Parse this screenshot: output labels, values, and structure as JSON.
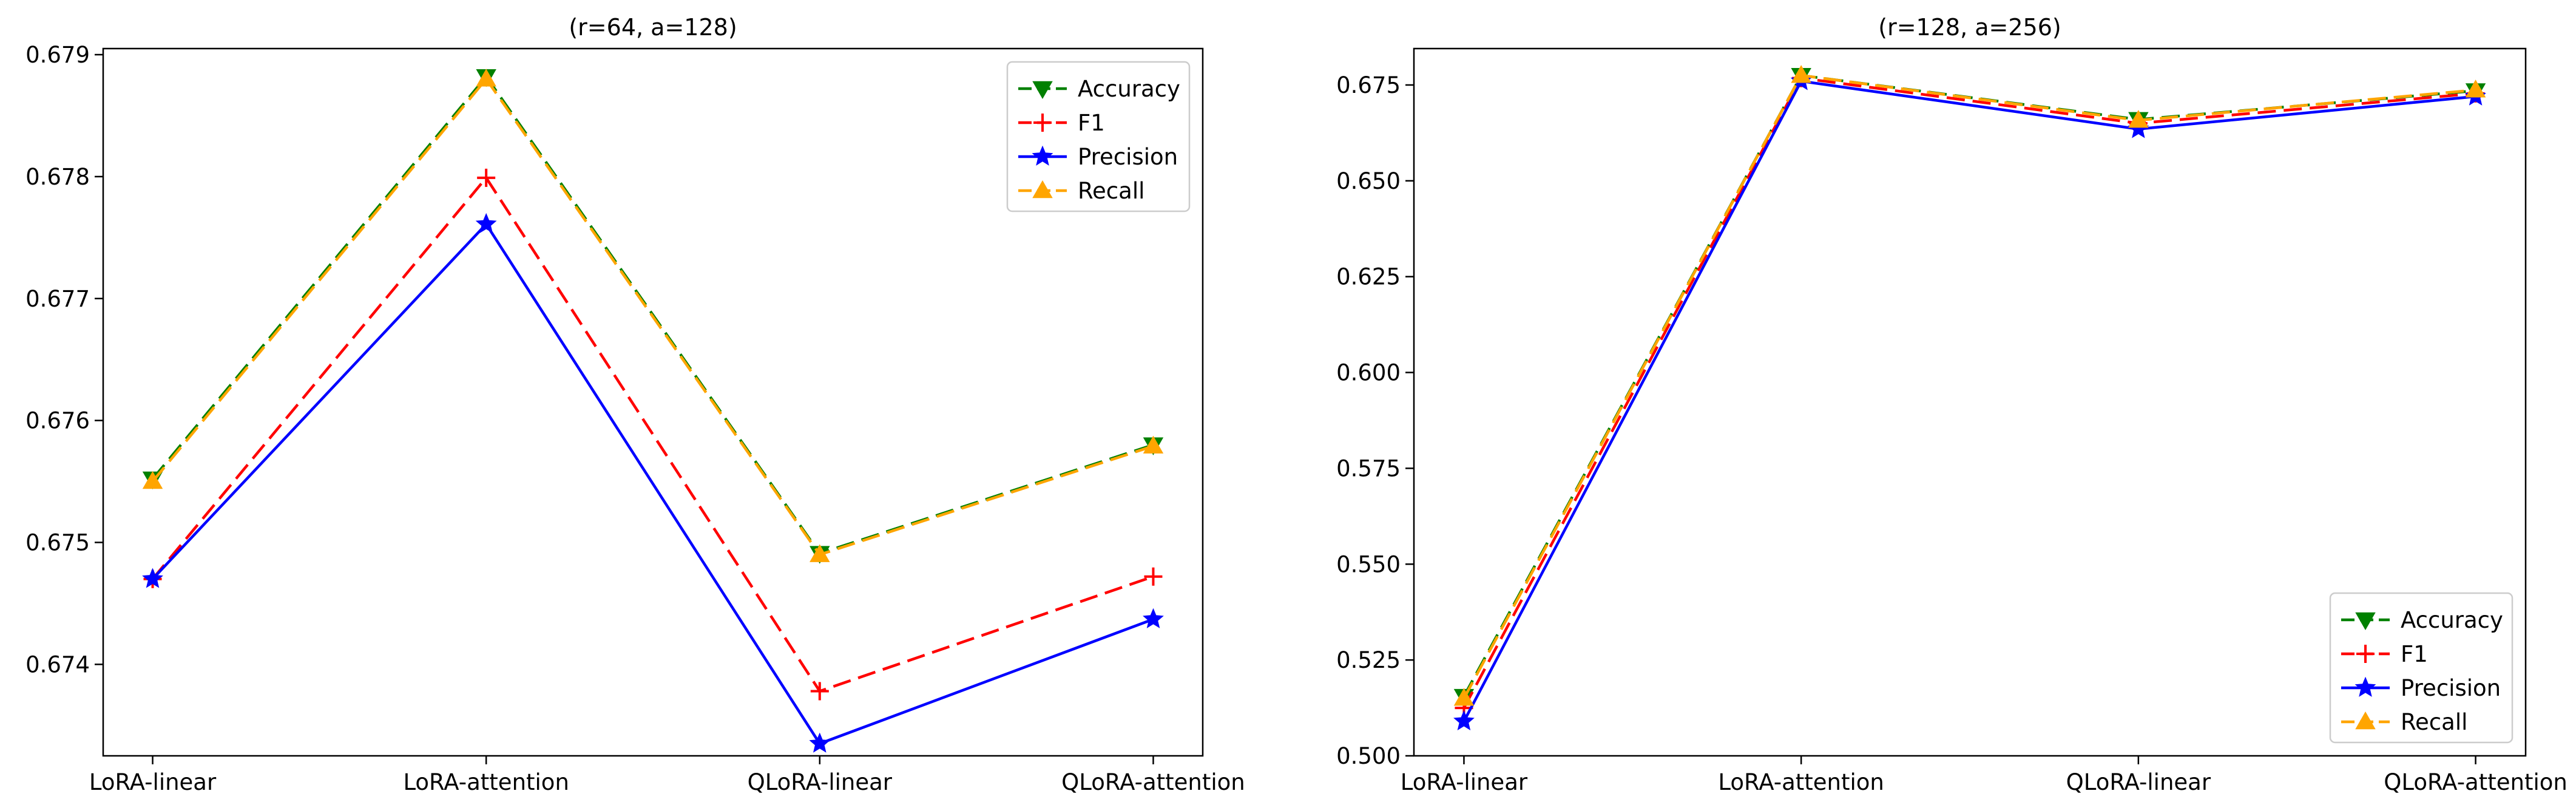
{
  "chart_data": [
    {
      "type": "line",
      "title": "(r=64, a=128)",
      "xlabel": "",
      "ylabel": "",
      "categories": [
        "LoRA-linear",
        "LoRA-attention",
        "QLoRA-linear",
        "QLoRA-attention"
      ],
      "ylim": [
        0.67325,
        0.67905
      ],
      "yticks": [
        0.674,
        0.675,
        0.676,
        0.677,
        0.678,
        0.679
      ],
      "ytick_labels": [
        "0.674",
        "0.675",
        "0.676",
        "0.677",
        "0.678",
        "0.679"
      ],
      "grid": false,
      "legend_position": "top-right",
      "series": [
        {
          "name": "Accuracy",
          "values": [
            0.67552,
            0.67882,
            0.67491,
            0.6758
          ],
          "color": "#008000",
          "dash": "dashed",
          "marker": "triangle-down"
        },
        {
          "name": "F1",
          "values": [
            0.6747,
            0.67799,
            0.67378,
            0.67472
          ],
          "color": "#ff0000",
          "dash": "dashed",
          "marker": "plus"
        },
        {
          "name": "Precision",
          "values": [
            0.6747,
            0.67761,
            0.67335,
            0.67437
          ],
          "color": "#0000ff",
          "dash": "solid",
          "marker": "star"
        },
        {
          "name": "Recall",
          "values": [
            0.6755,
            0.6788,
            0.6749,
            0.67579
          ],
          "color": "#ffa500",
          "dash": "dashed",
          "marker": "triangle-up"
        }
      ]
    },
    {
      "type": "line",
      "title": "(r=128, a=256)",
      "xlabel": "",
      "ylabel": "",
      "categories": [
        "LoRA-linear",
        "LoRA-attention",
        "QLoRA-linear",
        "QLoRA-attention"
      ],
      "ylim": [
        0.5,
        0.6845
      ],
      "yticks": [
        0.5,
        0.525,
        0.55,
        0.575,
        0.6,
        0.625,
        0.65,
        0.675
      ],
      "ytick_labels": [
        "0.500",
        "0.525",
        "0.550",
        "0.575",
        "0.600",
        "0.625",
        "0.650",
        "0.675"
      ],
      "grid": false,
      "legend_position": "bottom-right",
      "series": [
        {
          "name": "Accuracy",
          "values": [
            0.5155,
            0.6775,
            0.666,
            0.6735
          ],
          "color": "#008000",
          "dash": "dashed",
          "marker": "triangle-down"
        },
        {
          "name": "F1",
          "values": [
            0.5125,
            0.6768,
            0.665,
            0.6728
          ],
          "color": "#ff0000",
          "dash": "dashed",
          "marker": "plus"
        },
        {
          "name": "Precision",
          "values": [
            0.509,
            0.676,
            0.6635,
            0.672
          ],
          "color": "#0000ff",
          "dash": "solid",
          "marker": "star"
        },
        {
          "name": "Recall",
          "values": [
            0.515,
            0.6775,
            0.6658,
            0.6737
          ],
          "color": "#ffa500",
          "dash": "dashed",
          "marker": "triangle-up"
        }
      ]
    }
  ]
}
